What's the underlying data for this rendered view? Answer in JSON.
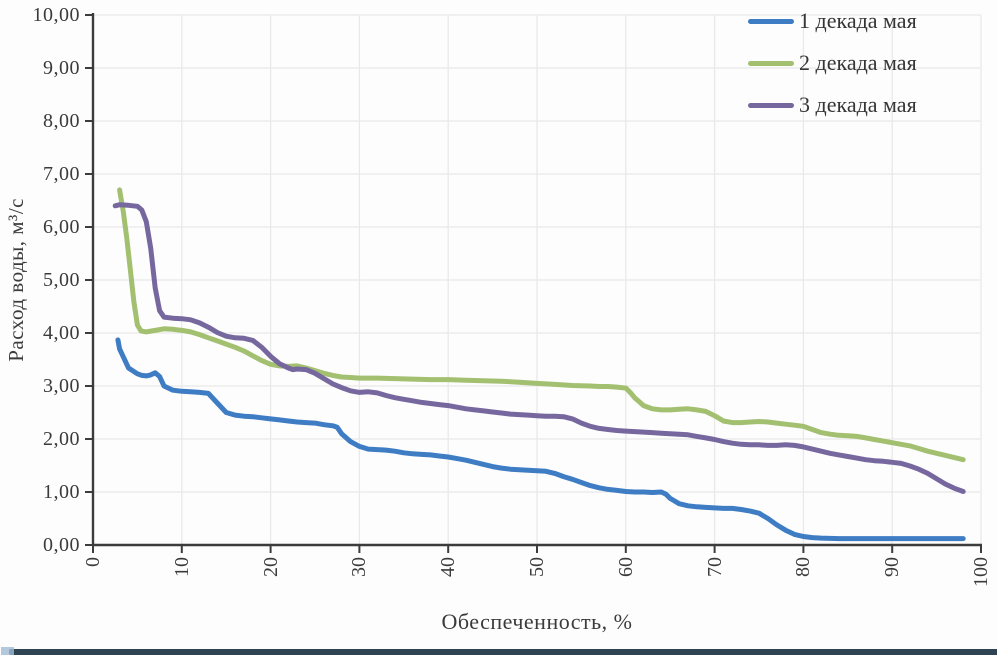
{
  "figure": {
    "background": "#fdfdfd",
    "grid_color": "#e9e9e9",
    "axis_color": "#3c3c3c",
    "text_color": "#3b3b3b",
    "artifact_color": "#2e4452"
  },
  "chart_data": {
    "type": "line",
    "title": "",
    "xlabel": "Обеспеченность, %",
    "ylabel": "Расход воды, м³/с",
    "xlim": [
      0,
      100
    ],
    "ylim": [
      0,
      10
    ],
    "grid": true,
    "legend_position": "top-right",
    "x_ticks": [
      0,
      10,
      20,
      30,
      40,
      50,
      60,
      70,
      80,
      90,
      100
    ],
    "x_tick_labels": [
      "0",
      "10",
      "20",
      "30",
      "40",
      "50",
      "60",
      "70",
      "80",
      "90",
      "100"
    ],
    "y_ticks": [
      0,
      1,
      2,
      3,
      4,
      5,
      6,
      7,
      8,
      9,
      10
    ],
    "y_tick_labels": [
      "0,00",
      "1,00",
      "2,00",
      "3,00",
      "4,00",
      "5,00",
      "6,00",
      "7,00",
      "8,00",
      "9,00",
      "10,00"
    ],
    "series": [
      {
        "name": "1 декада мая",
        "color": "#3e7cc4",
        "points": [
          [
            2.8,
            3.87
          ],
          [
            3,
            3.7
          ],
          [
            4,
            3.34
          ],
          [
            5,
            3.23
          ],
          [
            5.5,
            3.2
          ],
          [
            6,
            3.19
          ],
          [
            6.5,
            3.21
          ],
          [
            7,
            3.25
          ],
          [
            7.5,
            3.18
          ],
          [
            8,
            3.0
          ],
          [
            9,
            2.92
          ],
          [
            10,
            2.9
          ],
          [
            11,
            2.89
          ],
          [
            12,
            2.88
          ],
          [
            13,
            2.86
          ],
          [
            14,
            2.68
          ],
          [
            15,
            2.5
          ],
          [
            16,
            2.45
          ],
          [
            17,
            2.43
          ],
          [
            18,
            2.42
          ],
          [
            19,
            2.4
          ],
          [
            20,
            2.38
          ],
          [
            21,
            2.36
          ],
          [
            22,
            2.34
          ],
          [
            23,
            2.32
          ],
          [
            24,
            2.31
          ],
          [
            25,
            2.3
          ],
          [
            26,
            2.27
          ],
          [
            27,
            2.25
          ],
          [
            27.5,
            2.22
          ],
          [
            28,
            2.1
          ],
          [
            29,
            1.95
          ],
          [
            30,
            1.86
          ],
          [
            31,
            1.81
          ],
          [
            32,
            1.8
          ],
          [
            33,
            1.79
          ],
          [
            34,
            1.77
          ],
          [
            35,
            1.74
          ],
          [
            36,
            1.72
          ],
          [
            37,
            1.71
          ],
          [
            38,
            1.7
          ],
          [
            39,
            1.68
          ],
          [
            40,
            1.66
          ],
          [
            41,
            1.63
          ],
          [
            42,
            1.6
          ],
          [
            43,
            1.56
          ],
          [
            44,
            1.52
          ],
          [
            45,
            1.48
          ],
          [
            46,
            1.45
          ],
          [
            47,
            1.43
          ],
          [
            48,
            1.42
          ],
          [
            49,
            1.41
          ],
          [
            50,
            1.4
          ],
          [
            51,
            1.39
          ],
          [
            52,
            1.35
          ],
          [
            53,
            1.29
          ],
          [
            54,
            1.24
          ],
          [
            55,
            1.18
          ],
          [
            56,
            1.12
          ],
          [
            57,
            1.08
          ],
          [
            58,
            1.05
          ],
          [
            59,
            1.03
          ],
          [
            60,
            1.01
          ],
          [
            61,
            1.0
          ],
          [
            62,
            1.0
          ],
          [
            63,
            0.99
          ],
          [
            64,
            1.0
          ],
          [
            64.5,
            0.96
          ],
          [
            65,
            0.88
          ],
          [
            66,
            0.78
          ],
          [
            67,
            0.74
          ],
          [
            68,
            0.72
          ],
          [
            69,
            0.71
          ],
          [
            70,
            0.7
          ],
          [
            71,
            0.69
          ],
          [
            72,
            0.69
          ],
          [
            73,
            0.67
          ],
          [
            74,
            0.64
          ],
          [
            75,
            0.6
          ],
          [
            76,
            0.5
          ],
          [
            77,
            0.38
          ],
          [
            78,
            0.28
          ],
          [
            79,
            0.2
          ],
          [
            80,
            0.16
          ],
          [
            81,
            0.14
          ],
          [
            82,
            0.13
          ],
          [
            84,
            0.12
          ],
          [
            86,
            0.12
          ],
          [
            88,
            0.12
          ],
          [
            90,
            0.12
          ],
          [
            92,
            0.12
          ],
          [
            94,
            0.12
          ],
          [
            96,
            0.12
          ],
          [
            98,
            0.12
          ]
        ]
      },
      {
        "name": "2 декада мая",
        "color": "#a3bf70",
        "points": [
          [
            3,
            6.7
          ],
          [
            3.4,
            6.3
          ],
          [
            3.8,
            5.8
          ],
          [
            4.2,
            5.2
          ],
          [
            4.6,
            4.6
          ],
          [
            5,
            4.15
          ],
          [
            5.4,
            4.04
          ],
          [
            6,
            4.02
          ],
          [
            7,
            4.05
          ],
          [
            8,
            4.08
          ],
          [
            9,
            4.07
          ],
          [
            10,
            4.05
          ],
          [
            11,
            4.02
          ],
          [
            12,
            3.97
          ],
          [
            13,
            3.91
          ],
          [
            14,
            3.85
          ],
          [
            15,
            3.79
          ],
          [
            16,
            3.73
          ],
          [
            17,
            3.66
          ],
          [
            18,
            3.57
          ],
          [
            19,
            3.48
          ],
          [
            20,
            3.41
          ],
          [
            21,
            3.38
          ],
          [
            22,
            3.37
          ],
          [
            23,
            3.38
          ],
          [
            24,
            3.34
          ],
          [
            25,
            3.29
          ],
          [
            26,
            3.24
          ],
          [
            27,
            3.2
          ],
          [
            28,
            3.17
          ],
          [
            29,
            3.16
          ],
          [
            30,
            3.15
          ],
          [
            32,
            3.15
          ],
          [
            34,
            3.14
          ],
          [
            36,
            3.13
          ],
          [
            38,
            3.12
          ],
          [
            40,
            3.12
          ],
          [
            42,
            3.11
          ],
          [
            44,
            3.1
          ],
          [
            46,
            3.09
          ],
          [
            48,
            3.07
          ],
          [
            50,
            3.05
          ],
          [
            52,
            3.03
          ],
          [
            54,
            3.01
          ],
          [
            56,
            3.0
          ],
          [
            57,
            2.99
          ],
          [
            58,
            2.99
          ],
          [
            59,
            2.98
          ],
          [
            60,
            2.96
          ],
          [
            60.5,
            2.88
          ],
          [
            61,
            2.78
          ],
          [
            62,
            2.63
          ],
          [
            63,
            2.57
          ],
          [
            64,
            2.55
          ],
          [
            65,
            2.55
          ],
          [
            66,
            2.56
          ],
          [
            67,
            2.57
          ],
          [
            68,
            2.55
          ],
          [
            69,
            2.52
          ],
          [
            70,
            2.44
          ],
          [
            71,
            2.34
          ],
          [
            72,
            2.31
          ],
          [
            73,
            2.31
          ],
          [
            74,
            2.32
          ],
          [
            75,
            2.33
          ],
          [
            76,
            2.32
          ],
          [
            77,
            2.3
          ],
          [
            78,
            2.28
          ],
          [
            79,
            2.26
          ],
          [
            80,
            2.24
          ],
          [
            81,
            2.18
          ],
          [
            82,
            2.12
          ],
          [
            83,
            2.09
          ],
          [
            84,
            2.07
          ],
          [
            85,
            2.06
          ],
          [
            86,
            2.05
          ],
          [
            87,
            2.02
          ],
          [
            88,
            1.99
          ],
          [
            89,
            1.96
          ],
          [
            90,
            1.93
          ],
          [
            91,
            1.9
          ],
          [
            92,
            1.87
          ],
          [
            93,
            1.82
          ],
          [
            94,
            1.77
          ],
          [
            95,
            1.73
          ],
          [
            96,
            1.69
          ],
          [
            97,
            1.65
          ],
          [
            98,
            1.61
          ]
        ]
      },
      {
        "name": "3 декада мая",
        "color": "#76689e",
        "points": [
          [
            2.5,
            6.4
          ],
          [
            3,
            6.42
          ],
          [
            4,
            6.41
          ],
          [
            5,
            6.39
          ],
          [
            5.5,
            6.32
          ],
          [
            6,
            6.1
          ],
          [
            6.5,
            5.6
          ],
          [
            7,
            4.85
          ],
          [
            7.5,
            4.42
          ],
          [
            8,
            4.3
          ],
          [
            9,
            4.28
          ],
          [
            10,
            4.27
          ],
          [
            11,
            4.25
          ],
          [
            12,
            4.19
          ],
          [
            13,
            4.11
          ],
          [
            14,
            4.01
          ],
          [
            15,
            3.94
          ],
          [
            16,
            3.91
          ],
          [
            17,
            3.9
          ],
          [
            18,
            3.86
          ],
          [
            19,
            3.73
          ],
          [
            20,
            3.56
          ],
          [
            21,
            3.42
          ],
          [
            22,
            3.34
          ],
          [
            22.5,
            3.31
          ],
          [
            23,
            3.32
          ],
          [
            24,
            3.31
          ],
          [
            25,
            3.24
          ],
          [
            26,
            3.14
          ],
          [
            27,
            3.04
          ],
          [
            28,
            2.97
          ],
          [
            29,
            2.91
          ],
          [
            30,
            2.88
          ],
          [
            31,
            2.89
          ],
          [
            32,
            2.87
          ],
          [
            33,
            2.82
          ],
          [
            34,
            2.78
          ],
          [
            35,
            2.75
          ],
          [
            36,
            2.72
          ],
          [
            37,
            2.69
          ],
          [
            38,
            2.67
          ],
          [
            39,
            2.65
          ],
          [
            40,
            2.63
          ],
          [
            41,
            2.6
          ],
          [
            42,
            2.57
          ],
          [
            43,
            2.55
          ],
          [
            44,
            2.53
          ],
          [
            45,
            2.51
          ],
          [
            46,
            2.49
          ],
          [
            47,
            2.47
          ],
          [
            48,
            2.46
          ],
          [
            49,
            2.45
          ],
          [
            50,
            2.44
          ],
          [
            51,
            2.43
          ],
          [
            52,
            2.43
          ],
          [
            53,
            2.42
          ],
          [
            54,
            2.38
          ],
          [
            55,
            2.3
          ],
          [
            56,
            2.24
          ],
          [
            57,
            2.2
          ],
          [
            58,
            2.18
          ],
          [
            59,
            2.16
          ],
          [
            60,
            2.15
          ],
          [
            61,
            2.14
          ],
          [
            62,
            2.13
          ],
          [
            63,
            2.12
          ],
          [
            64,
            2.11
          ],
          [
            65,
            2.1
          ],
          [
            66,
            2.09
          ],
          [
            67,
            2.08
          ],
          [
            68,
            2.05
          ],
          [
            69,
            2.02
          ],
          [
            70,
            1.99
          ],
          [
            71,
            1.95
          ],
          [
            72,
            1.92
          ],
          [
            73,
            1.9
          ],
          [
            74,
            1.89
          ],
          [
            75,
            1.89
          ],
          [
            76,
            1.88
          ],
          [
            77,
            1.88
          ],
          [
            78,
            1.89
          ],
          [
            79,
            1.88
          ],
          [
            80,
            1.85
          ],
          [
            81,
            1.81
          ],
          [
            82,
            1.77
          ],
          [
            83,
            1.73
          ],
          [
            84,
            1.7
          ],
          [
            85,
            1.67
          ],
          [
            86,
            1.64
          ],
          [
            87,
            1.61
          ],
          [
            88,
            1.59
          ],
          [
            89,
            1.58
          ],
          [
            90,
            1.56
          ],
          [
            91,
            1.54
          ],
          [
            92,
            1.49
          ],
          [
            93,
            1.43
          ],
          [
            94,
            1.35
          ],
          [
            95,
            1.25
          ],
          [
            96,
            1.15
          ],
          [
            97,
            1.07
          ],
          [
            98,
            1.01
          ]
        ]
      }
    ]
  }
}
